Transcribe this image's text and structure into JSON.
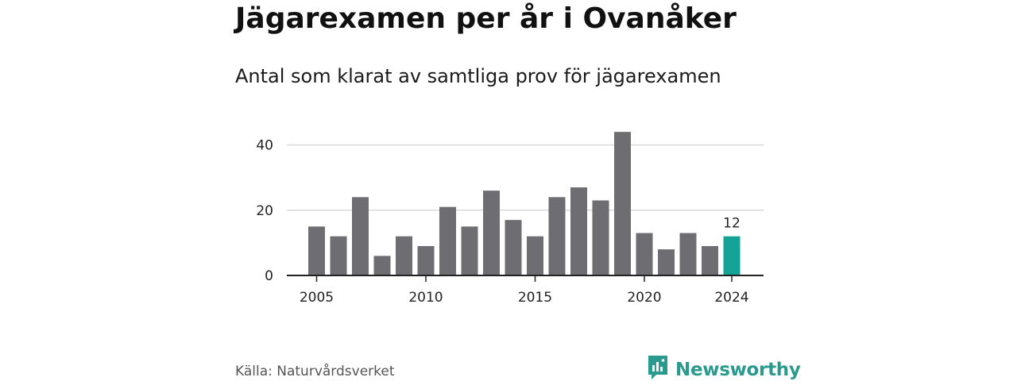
{
  "title": "Jägarexamen per år i Ovanåker",
  "subtitle": "Antal som klarat av samtliga prov för jägarexamen",
  "source": "Källa: Naturvårdsverket",
  "brand": {
    "name": "Newsworthy",
    "icon": "newsworthy-logo-icon",
    "color": "#2a9a8e"
  },
  "colors": {
    "bar": "#6e6d72",
    "highlight": "#14a396",
    "grid": "#d9d9d9",
    "axis": "#222222"
  },
  "chart_data": {
    "type": "bar",
    "title": "Jägarexamen per år i Ovanåker",
    "subtitle": "Antal som klarat av samtliga prov för jägarexamen",
    "xlabel": "",
    "ylabel": "",
    "categories": [
      2005,
      2006,
      2007,
      2008,
      2009,
      2010,
      2011,
      2012,
      2013,
      2014,
      2015,
      2016,
      2017,
      2018,
      2019,
      2020,
      2021,
      2022,
      2023,
      2024
    ],
    "values": [
      15,
      12,
      24,
      6,
      12,
      9,
      21,
      15,
      26,
      17,
      12,
      24,
      27,
      23,
      44,
      13,
      8,
      13,
      9,
      12
    ],
    "ylim": [
      0,
      48
    ],
    "yticks": [
      0,
      20,
      40
    ],
    "xticks": [
      2005,
      2010,
      2015,
      2020,
      2024
    ],
    "highlight_category": 2024,
    "data_labels": [
      {
        "category": 2024,
        "text": "12"
      }
    ],
    "grid": true
  }
}
